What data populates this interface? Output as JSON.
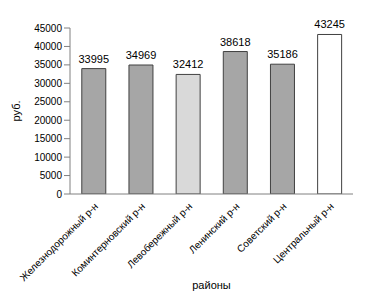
{
  "chart_data": {
    "type": "bar",
    "categories": [
      "Железнодорожный р-н",
      "Коминтерновский р-н",
      "Левобережный р-н",
      "Ленинский р-н",
      "Советский р-н",
      "Центральный р-н"
    ],
    "values": [
      33995,
      34969,
      32412,
      38618,
      35186,
      43245
    ],
    "colors": [
      "#a6a6a6",
      "#a6a6a6",
      "#d9d9d9",
      "#a6a6a6",
      "#a6a6a6",
      "#ffffff"
    ],
    "x_label": "районы",
    "y_label": "руб.",
    "ylim": [
      0,
      45000
    ],
    "yticks": [
      0,
      5000,
      10000,
      15000,
      20000,
      25000,
      30000,
      35000,
      40000,
      45000
    ],
    "grid": false,
    "data_labels": true
  }
}
